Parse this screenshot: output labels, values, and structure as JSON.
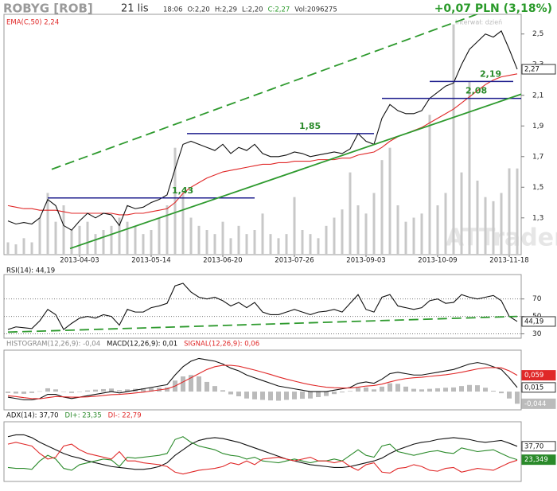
{
  "header": {
    "symbol": "ROBYG [ROB]",
    "date": "21 lis",
    "quote": [
      "18:06",
      "O:2,20",
      "H:2,29",
      "L:2,20",
      "C:2,27",
      "Vol:2096275"
    ],
    "change": "+0,07 PLN (3,18%)",
    "interval": "Interwał: dzień",
    "watermark": "ATTrader.pl"
  },
  "chart_data": [
    {
      "type": "line",
      "categories": [
        null,
        null,
        null,
        null,
        null,
        null,
        null,
        null,
        null,
        "2013-04-03",
        null,
        null,
        null,
        null,
        null,
        null,
        null,
        null,
        "2013-05-14",
        null,
        null,
        null,
        null,
        null,
        null,
        null,
        null,
        "2013-06-20",
        null,
        null,
        null,
        null,
        null,
        null,
        null,
        null,
        "2013-07-26",
        null,
        null,
        null,
        null,
        null,
        null,
        null,
        null,
        "2013-09-03",
        null,
        null,
        null,
        null,
        null,
        null,
        null,
        null,
        "2013-10-09",
        null,
        null,
        null,
        null,
        null,
        null,
        null,
        null,
        "2013-11-18",
        null
      ],
      "ylim": [
        1.06,
        2.67
      ],
      "yticks": [
        {
          "value": 1.3,
          "label": "1,3"
        },
        {
          "value": 1.5,
          "label": "1,5"
        },
        {
          "value": 1.7,
          "label": "1,7"
        },
        {
          "value": 1.9,
          "label": "1,9"
        },
        {
          "value": 2.1,
          "label": "2,1"
        },
        {
          "value": 2.3,
          "label": "2,3"
        },
        {
          "value": 2.5,
          "label": "2,5"
        }
      ],
      "grid": false,
      "y2lim": [
        0,
        6000000
      ],
      "series": [
        {
          "style": "bar",
          "axis": "y2",
          "color": "#c8c8c8",
          "values": [
            300000,
            250000,
            400000,
            300000,
            900000,
            1500000,
            800000,
            1200000,
            600000,
            700000,
            800000,
            500000,
            600000,
            700000,
            900000,
            800000,
            700000,
            500000,
            600000,
            900000,
            1200000,
            2600000,
            1500000,
            900000,
            700000,
            600000,
            500000,
            800000,
            400000,
            700000,
            500000,
            600000,
            1000000,
            500000,
            400000,
            500000,
            1400000,
            600000,
            500000,
            400000,
            700000,
            900000,
            1100000,
            2000000,
            1200000,
            1000000,
            1500000,
            2300000,
            2600000,
            1200000,
            800000,
            900000,
            1000000,
            3400000,
            1200000,
            1500000,
            5600000,
            2000000,
            4200000,
            1800000,
            1400000,
            1300000,
            1500000,
            2100000,
            2096275
          ]
        },
        {
          "name": "EMA(C,50) 2,24",
          "color": "#e02828",
          "values": [
            1.38,
            1.37,
            1.36,
            1.36,
            1.35,
            1.35,
            1.35,
            1.34,
            1.33,
            1.33,
            1.33,
            1.33,
            1.33,
            1.33,
            1.32,
            1.32,
            1.33,
            1.33,
            1.34,
            1.35,
            1.36,
            1.4,
            1.46,
            1.5,
            1.53,
            1.56,
            1.58,
            1.6,
            1.61,
            1.62,
            1.63,
            1.64,
            1.65,
            1.65,
            1.66,
            1.66,
            1.67,
            1.67,
            1.67,
            1.68,
            1.68,
            1.68,
            1.69,
            1.69,
            1.71,
            1.72,
            1.73,
            1.76,
            1.8,
            1.83,
            1.85,
            1.87,
            1.89,
            1.92,
            1.95,
            1.98,
            2.01,
            2.05,
            2.09,
            2.13,
            2.17,
            2.2,
            2.22,
            2.23,
            2.24
          ]
        },
        {
          "color": "#111111",
          "last_label": "2,27",
          "values": [
            1.28,
            1.26,
            1.27,
            1.26,
            1.3,
            1.42,
            1.38,
            1.25,
            1.22,
            1.28,
            1.33,
            1.3,
            1.33,
            1.32,
            1.25,
            1.38,
            1.36,
            1.37,
            1.4,
            1.42,
            1.45,
            1.62,
            1.78,
            1.8,
            1.78,
            1.76,
            1.74,
            1.78,
            1.72,
            1.76,
            1.74,
            1.78,
            1.72,
            1.7,
            1.7,
            1.71,
            1.73,
            1.72,
            1.7,
            1.71,
            1.72,
            1.73,
            1.72,
            1.75,
            1.85,
            1.8,
            1.78,
            1.95,
            2.04,
            2.0,
            1.98,
            1.98,
            2.0,
            2.08,
            2.12,
            2.16,
            2.18,
            2.3,
            2.4,
            2.45,
            2.5,
            2.48,
            2.52,
            2.4,
            2.27
          ]
        }
      ],
      "levels": [
        {
          "value": 1.43,
          "label": "1,43",
          "from": 5,
          "to": 31
        },
        {
          "value": 1.85,
          "label": "1,85",
          "from": 22.5,
          "to": 46
        },
        {
          "value": 2.08,
          "label": "2,08",
          "from": 47,
          "to": 64.5
        },
        {
          "value": 2.19,
          "label": "2,19",
          "from": 53,
          "to": 63.5
        }
      ],
      "level_color": "#1c1c8c",
      "level_label_color": "#2a8a2a",
      "trendlines": [
        {
          "from": {
            "x": 5.5,
            "y": 1.617
          },
          "to": {
            "x": 59,
            "y": 2.63
          },
          "dash": true,
          "color": "#2e9a2e"
        },
        {
          "from": {
            "x": 7.8,
            "y": 1.1
          },
          "to": {
            "x": 65,
            "y": 2.116
          },
          "dash": false,
          "color": "#2e9a2e"
        }
      ]
    },
    {
      "type": "line",
      "ylim": [
        25,
        98
      ],
      "yticks": [
        30,
        50,
        70
      ],
      "grid": true,
      "series": [
        {
          "name": "RSI(14): 44,19",
          "color": "#111111",
          "last_label": "44,19",
          "values": [
            35,
            38,
            37,
            36,
            45,
            58,
            52,
            35,
            42,
            48,
            50,
            48,
            52,
            50,
            40,
            58,
            55,
            55,
            60,
            62,
            65,
            85,
            88,
            78,
            72,
            70,
            72,
            68,
            62,
            66,
            60,
            66,
            55,
            52,
            52,
            55,
            58,
            55,
            52,
            55,
            56,
            58,
            55,
            65,
            75,
            58,
            55,
            72,
            75,
            62,
            60,
            58,
            60,
            68,
            70,
            65,
            66,
            75,
            72,
            70,
            72,
            74,
            68,
            50,
            44.19
          ]
        }
      ],
      "trendlines": [
        {
          "from": {
            "x": 0,
            "y": 32
          },
          "to": {
            "x": 64,
            "y": 50
          },
          "dash": true,
          "color": "#2e9a2e"
        }
      ]
    },
    {
      "type": "line",
      "ylim": [
        -0.066,
        0.15
      ],
      "series": [
        {
          "name": "HISTOGRAM(12,26,9): -0,04",
          "style": "bar",
          "color": "#bbbbbb",
          "last_label": "-0,044",
          "values": [
            -0.005,
            -0.007,
            -0.008,
            -0.005,
            0.001,
            0.012,
            0.008,
            -0.001,
            -0.005,
            0.0,
            0.004,
            0.007,
            0.009,
            0.011,
            0.005,
            0.008,
            0.01,
            0.012,
            0.013,
            0.014,
            0.015,
            0.04,
            0.055,
            0.06,
            0.055,
            0.035,
            0.02,
            0.005,
            -0.01,
            -0.017,
            -0.025,
            -0.028,
            -0.03,
            -0.032,
            -0.033,
            -0.03,
            -0.028,
            -0.026,
            -0.025,
            -0.02,
            -0.016,
            -0.009,
            -0.003,
            0.002,
            0.014,
            0.015,
            0.008,
            0.018,
            0.03,
            0.028,
            0.018,
            0.01,
            0.008,
            0.01,
            0.012,
            0.014,
            0.015,
            0.02,
            0.024,
            0.023,
            0.014,
            0.003,
            -0.006,
            -0.025,
            -0.044
          ]
        },
        {
          "name": "MACD(12,26,9): 0,01",
          "color": "#111111",
          "last_label": "0,015",
          "values": [
            -0.02,
            -0.025,
            -0.03,
            -0.03,
            -0.025,
            -0.01,
            -0.01,
            -0.02,
            -0.025,
            -0.02,
            -0.015,
            -0.01,
            -0.005,
            0,
            -0.005,
            0.0,
            0.005,
            0.01,
            0.015,
            0.02,
            0.025,
            0.06,
            0.09,
            0.11,
            0.12,
            0.115,
            0.11,
            0.1,
            0.085,
            0.075,
            0.06,
            0.05,
            0.04,
            0.03,
            0.02,
            0.015,
            0.01,
            0.005,
            0.0,
            0.0,
            0.0,
            0.005,
            0.01,
            0.015,
            0.03,
            0.035,
            0.03,
            0.045,
            0.065,
            0.07,
            0.065,
            0.06,
            0.06,
            0.065,
            0.07,
            0.075,
            0.08,
            0.09,
            0.1,
            0.105,
            0.1,
            0.09,
            0.08,
            0.05,
            0.015
          ]
        },
        {
          "name": "SIGNAL(12,26,9): 0,06",
          "color": "#e02828",
          "last_label": "0,059",
          "values": [
            -0.015,
            -0.018,
            -0.022,
            -0.025,
            -0.026,
            -0.022,
            -0.018,
            -0.019,
            -0.02,
            -0.02,
            -0.019,
            -0.017,
            -0.014,
            -0.011,
            -0.01,
            -0.008,
            -0.005,
            -0.002,
            0.002,
            0.006,
            0.01,
            0.02,
            0.035,
            0.05,
            0.065,
            0.08,
            0.09,
            0.095,
            0.095,
            0.092,
            0.085,
            0.078,
            0.07,
            0.062,
            0.053,
            0.045,
            0.038,
            0.031,
            0.025,
            0.02,
            0.016,
            0.014,
            0.013,
            0.013,
            0.016,
            0.02,
            0.022,
            0.027,
            0.035,
            0.042,
            0.047,
            0.05,
            0.052,
            0.055,
            0.058,
            0.061,
            0.065,
            0.07,
            0.076,
            0.082,
            0.086,
            0.087,
            0.086,
            0.075,
            0.059
          ]
        }
      ]
    },
    {
      "type": "line",
      "ylim": [
        0,
        64
      ],
      "series": [
        {
          "name": "ADX(14): 37,70",
          "color": "#111111",
          "last_label": "37,70",
          "values": [
            48,
            50,
            50,
            47,
            42,
            38,
            34,
            30,
            27,
            25,
            22,
            20,
            18,
            16,
            15,
            14,
            13,
            13,
            14,
            16,
            20,
            28,
            34,
            40,
            44,
            46,
            47,
            46,
            44,
            42,
            39,
            36,
            33,
            30,
            27,
            24,
            22,
            20,
            18,
            17,
            16,
            15,
            15,
            16,
            18,
            20,
            22,
            25,
            30,
            34,
            37,
            40,
            42,
            43,
            45,
            46,
            47,
            46,
            45,
            43,
            42,
            43,
            44,
            41,
            37.7
          ]
        },
        {
          "name": "DI+: 23,35",
          "color": "#2a8a2a",
          "last_label": "23,349",
          "values": [
            15,
            14,
            14,
            13,
            22,
            28,
            24,
            14,
            12,
            18,
            20,
            22,
            24,
            23,
            16,
            26,
            25,
            26,
            27,
            28,
            30,
            45,
            48,
            42,
            38,
            36,
            34,
            30,
            28,
            27,
            24,
            26,
            22,
            21,
            20,
            22,
            24,
            22,
            20,
            22,
            22,
            24,
            22,
            28,
            34,
            28,
            26,
            38,
            40,
            32,
            30,
            28,
            30,
            32,
            33,
            31,
            30,
            36,
            34,
            32,
            33,
            34,
            30,
            26,
            23.349
          ]
        },
        {
          "name": "DI-: 22,79",
          "color": "#e02828",
          "values": [
            40,
            42,
            40,
            38,
            30,
            24,
            26,
            38,
            40,
            34,
            30,
            28,
            26,
            24,
            32,
            22,
            22,
            20,
            19,
            18,
            16,
            10,
            8,
            10,
            12,
            13,
            14,
            16,
            20,
            18,
            22,
            18,
            24,
            25,
            26,
            24,
            22,
            24,
            26,
            22,
            22,
            20,
            22,
            16,
            12,
            18,
            20,
            10,
            9,
            14,
            15,
            18,
            16,
            12,
            11,
            14,
            15,
            10,
            12,
            14,
            13,
            12,
            16,
            20,
            22.79
          ]
        }
      ]
    }
  ]
}
